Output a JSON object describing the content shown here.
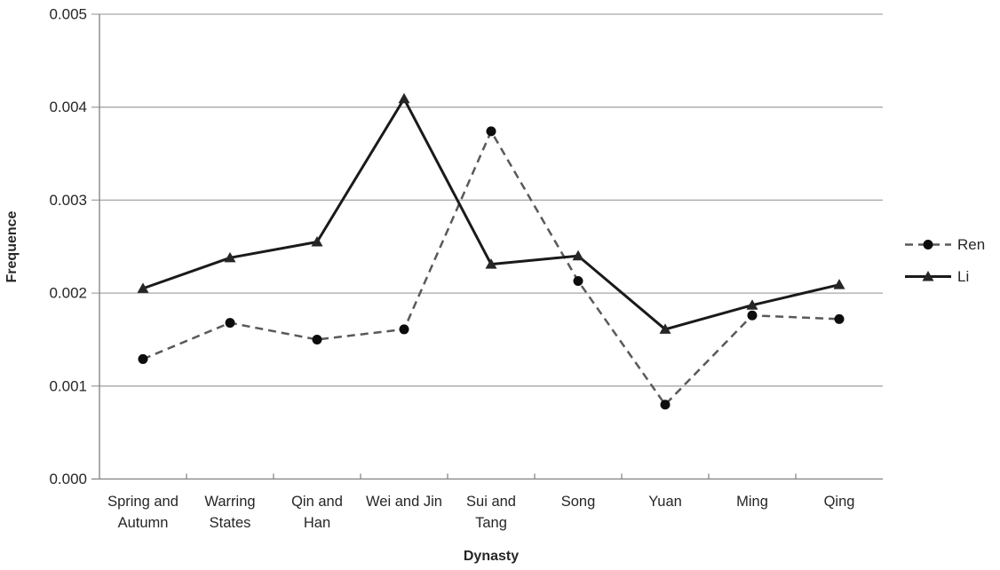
{
  "chart_data": {
    "type": "line",
    "xlabel": "Dynasty",
    "ylabel": "Frequence",
    "categories": [
      "Spring and Autumn",
      "Warring States",
      "Qin and Han",
      "Wei and Jin",
      "Sui and Tang",
      "Song",
      "Yuan",
      "Ming",
      "Qing"
    ],
    "category_label_lines": [
      [
        "Spring and",
        "Autumn"
      ],
      [
        "Warring",
        "States"
      ],
      [
        "Qin and",
        "Han"
      ],
      [
        "Wei and Jin"
      ],
      [
        "Sui and",
        "Tang"
      ],
      [
        "Song"
      ],
      [
        "Yuan"
      ],
      [
        "Ming"
      ],
      [
        "Qing"
      ]
    ],
    "series": [
      {
        "name": "Ren",
        "style": "dashed",
        "marker": "circle",
        "color": "#595959",
        "marker_color": "#0d0d0d",
        "values": [
          0.00129,
          0.00168,
          0.0015,
          0.00161,
          0.00374,
          0.00213,
          0.0008,
          0.00176,
          0.00172
        ]
      },
      {
        "name": "Li",
        "style": "solid",
        "marker": "triangle",
        "color": "#1a1a1a",
        "marker_color": "#262626",
        "values": [
          0.00205,
          0.00238,
          0.00255,
          0.00409,
          0.00231,
          0.0024,
          0.00161,
          0.00187,
          0.00209
        ]
      }
    ],
    "ylim": [
      0,
      0.005
    ],
    "ytick_step": 0.001,
    "ytick_labels": [
      "0.000",
      "0.001",
      "0.002",
      "0.003",
      "0.004",
      "0.005"
    ],
    "grid": "horizontal",
    "legend_position": "right",
    "colors": {
      "grid": "#a6a6a6",
      "axis": "#7f7f7f",
      "text": "#262626"
    }
  }
}
